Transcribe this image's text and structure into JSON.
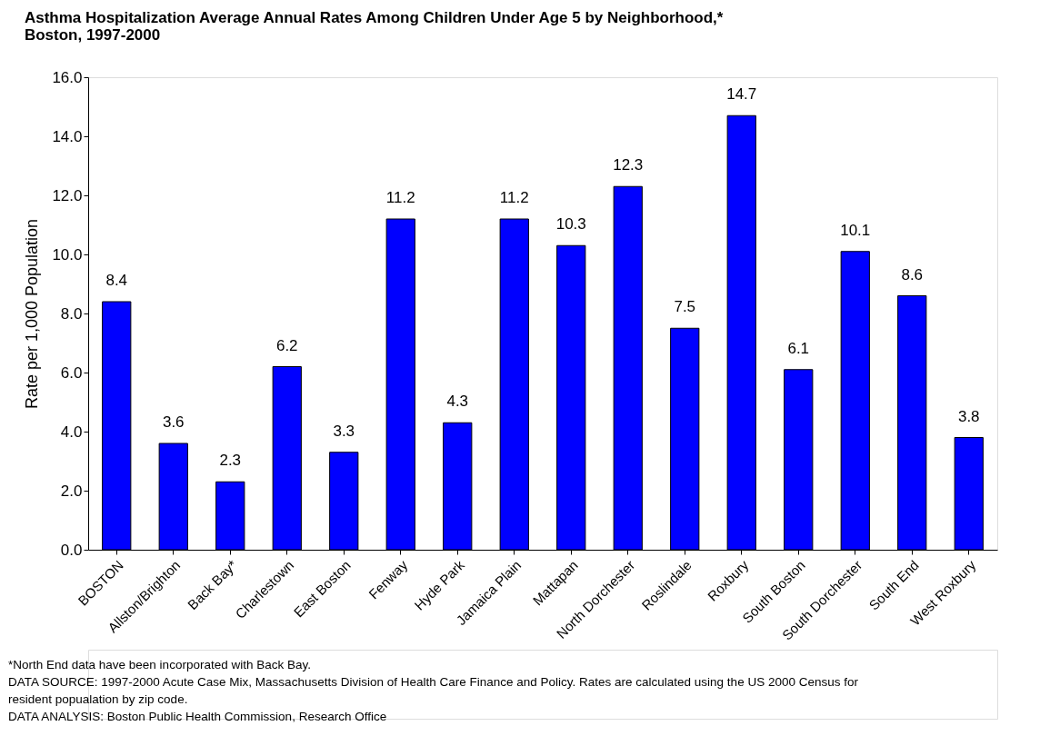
{
  "chart_data": {
    "type": "bar",
    "title": "Asthma Hospitalization Average Annual Rates Among Children Under Age 5 by Neighborhood,* Boston, 1997-2000",
    "ylabel": "Rate per 1,000 Population",
    "categories": [
      "BOSTON",
      "Allston/Brighton",
      "Back Bay*",
      "Charlestown",
      "East Boston",
      "Fenway",
      "Hyde Park",
      "Jamaica Plain",
      "Mattapan",
      "North Dorchester",
      "Roslindale",
      "Roxbury",
      "South Boston",
      "South Dorchester",
      "South End",
      "West Roxbury"
    ],
    "values": [
      8.4,
      3.6,
      2.3,
      6.2,
      3.3,
      11.2,
      4.3,
      11.2,
      10.3,
      12.3,
      7.5,
      14.7,
      6.1,
      10.1,
      8.6,
      3.8
    ],
    "color": "#0000ff",
    "ylim": [
      0,
      16
    ],
    "yticks": [
      {
        "value": 0,
        "label": "0.0"
      },
      {
        "value": 2,
        "label": "2.0"
      },
      {
        "value": 4,
        "label": "4.0"
      },
      {
        "value": 6,
        "label": "6.0"
      },
      {
        "value": 8,
        "label": "8.0"
      },
      {
        "value": 10,
        "label": "10.0"
      },
      {
        "value": 12,
        "label": "12.0"
      },
      {
        "value": 14,
        "label": "14.0"
      },
      {
        "value": 16,
        "label": "16.0"
      }
    ],
    "data_labels": true,
    "grid": false,
    "annotations": [
      "*North End data have been incorporated with Back Bay.",
      "DATA SOURCE:  1997-2000 Acute Case Mix, Massachusetts Division of Health Care Finance and Policy.  Rates are calculated using the US 2000 Census for resident popualation by zip code.",
      "DATA ANALYSIS:  Boston Public Health Commission, Research Office"
    ]
  }
}
